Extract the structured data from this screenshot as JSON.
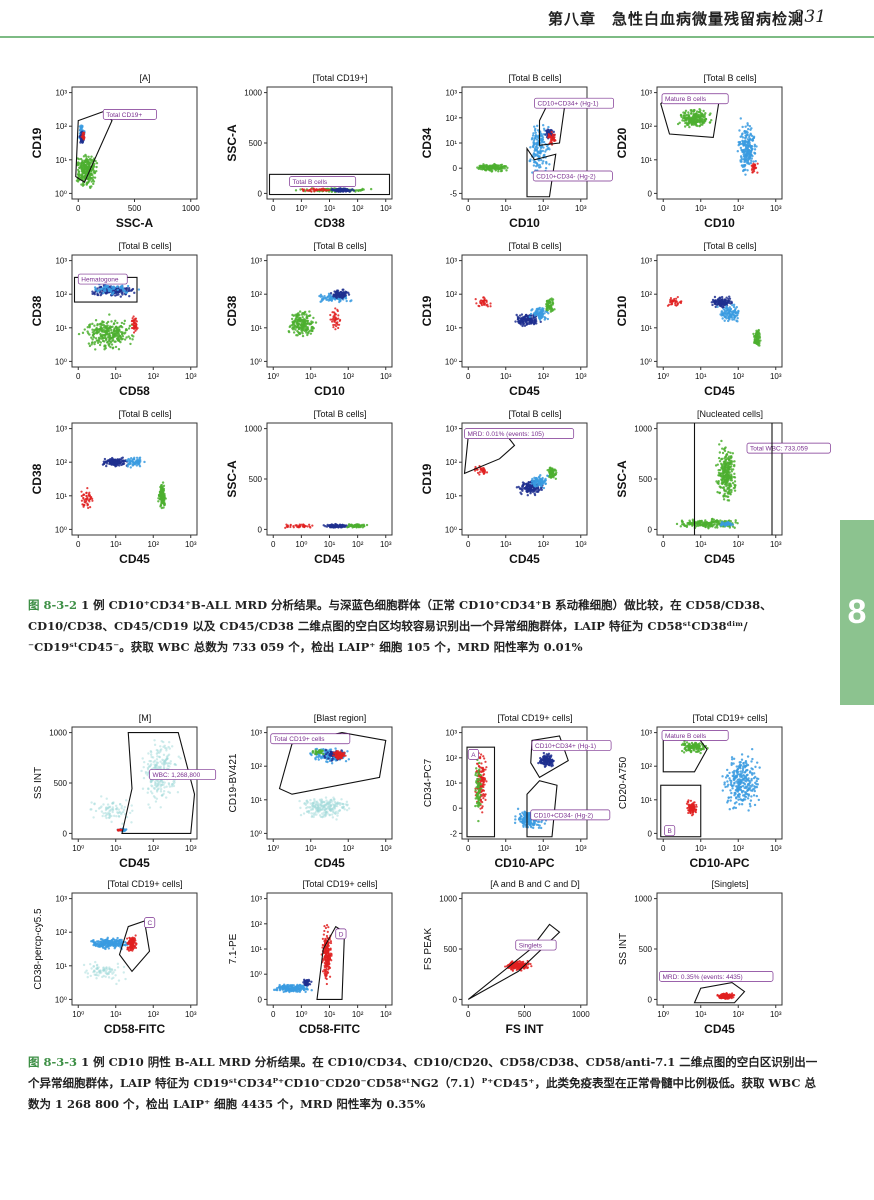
{
  "header": {
    "title": "第八章　急性白血病微量残留病检测",
    "page_number": "231"
  },
  "side_tab": {
    "label": "8"
  },
  "figure_1": {
    "plots": [
      {
        "title": "[A]",
        "xlabel": "SSC-A",
        "ylabel": "CD19",
        "xticks": [
          "0",
          "500",
          "1000"
        ],
        "yticks": [
          "10³",
          "10²",
          "10¹",
          "10⁰"
        ],
        "gate_label": "Total CD19+"
      },
      {
        "title": "[Total  CD19+]",
        "xlabel": "CD38",
        "ylabel": "SSC-A",
        "xticks": [
          "0",
          "10⁰",
          "10¹",
          "10²",
          "10³"
        ],
        "yticks": [
          "1000",
          "500",
          "0"
        ],
        "gate_label": "Total B  cells"
      },
      {
        "title": "[Total B cells]",
        "xlabel": "CD10",
        "ylabel": "CD34",
        "xticks": [
          "0",
          "10¹",
          "10²",
          "10³"
        ],
        "yticks": [
          "10³",
          "10²",
          "10¹",
          "0",
          "-5"
        ],
        "gate_label": "CD10+CD34+ (Hg-1)",
        "gate_label_2": "CD10+CD34- (Hg-2)"
      },
      {
        "title": "[Total B cells]",
        "xlabel": "CD10",
        "ylabel": "CD20",
        "xticks": [
          "0",
          "10¹",
          "10²",
          "10³"
        ],
        "yticks": [
          "10³",
          "10²",
          "10¹",
          "0"
        ],
        "gate_label": "Mature B cells"
      },
      {
        "title": "[Total B cells]",
        "xlabel": "CD58",
        "ylabel": "CD38",
        "xticks": [
          "0",
          "10¹",
          "10²",
          "10³"
        ],
        "yticks": [
          "10³",
          "10²",
          "10¹",
          "10⁰"
        ],
        "gate_label": "Hematogone"
      },
      {
        "title": "[Total B cells]",
        "xlabel": "CD10",
        "ylabel": "CD38",
        "xticks": [
          "10⁰",
          "10¹",
          "10²",
          "10³"
        ],
        "yticks": [
          "10³",
          "10²",
          "10¹",
          "10⁰"
        ],
        "gate_label": ""
      },
      {
        "title": "[Total B cells]",
        "xlabel": "CD45",
        "ylabel": "CD19",
        "xticks": [
          "0",
          "10¹",
          "10²",
          "10³"
        ],
        "yticks": [
          "10³",
          "10²",
          "10¹",
          "10⁰"
        ],
        "gate_label": ""
      },
      {
        "title": "[Total B cells]",
        "xlabel": "CD45",
        "ylabel": "CD10",
        "xticks": [
          "10⁰",
          "10¹",
          "10²",
          "10³"
        ],
        "yticks": [
          "10³",
          "10²",
          "10¹",
          "10⁰"
        ],
        "gate_label": ""
      },
      {
        "title": "[Total B cells]",
        "xlabel": "CD45",
        "ylabel": "CD38",
        "xticks": [
          "0",
          "10¹",
          "10²",
          "10³"
        ],
        "yticks": [
          "10³",
          "10²",
          "10¹",
          "10⁰"
        ],
        "gate_label": ""
      },
      {
        "title": "[Total B cells]",
        "xlabel": "CD45",
        "ylabel": "SSC-A",
        "xticks": [
          "0",
          "10⁰",
          "10¹",
          "10²",
          "10³"
        ],
        "yticks": [
          "1000",
          "500",
          "0"
        ],
        "gate_label": ""
      },
      {
        "title": "[Total B cells]",
        "xlabel": "CD45",
        "ylabel": "CD19",
        "xticks": [
          "0",
          "10¹",
          "10²",
          "10³"
        ],
        "yticks": [
          "10³",
          "10²",
          "10¹",
          "10⁰"
        ],
        "gate_label": "MRD: 0.01% (events: 105)"
      },
      {
        "title": "[Nucleated cells]",
        "xlabel": "CD45",
        "ylabel": "SSC-A",
        "xticks": [
          "0",
          "10¹",
          "10²",
          "10³"
        ],
        "yticks": [
          "1000",
          "500",
          "0"
        ],
        "gate_label": "Total WBC: 733,059"
      }
    ],
    "caption": {
      "number": "图 8-3-2",
      "text": "1 例 CD10⁺CD34⁺B-ALL MRD 分析结果。与深蓝色细胞群体（正常 CD10⁺CD34⁺B 系动稚细胞）做比较，在 CD58/CD38、CD10/CD38、CD45/CD19 以及 CD45/CD38 二维点图的空白区均较容易识别出一个异常细胞群体，LAIP 特征为 CD58ˢᵗCD38ᵈⁱᵐ/⁻CD19ˢᵗCD45⁻。获取 WBC 总数为 733 059 个，检出 LAIP⁺ 细胞 105 个，MRD 阳性率为 0.01%"
    }
  },
  "figure_2": {
    "plots": [
      {
        "title": "[M]",
        "xlabel": "CD45",
        "ylabel": "SS INT",
        "xticks": [
          "10⁰",
          "10¹",
          "10²",
          "10³"
        ],
        "yticks": [
          "1000",
          "500",
          "0"
        ],
        "gate_label": "WBC: 1,268,800"
      },
      {
        "title": "[Blast region]",
        "xlabel": "CD45",
        "ylabel": "CD19-BV421",
        "xticks": [
          "10⁰",
          "10¹",
          "10²",
          "10³"
        ],
        "yticks": [
          "10³",
          "10²",
          "10¹",
          "10⁰"
        ],
        "gate_label": "Total CD19+ cells"
      },
      {
        "title": "[Total CD19+ cells]",
        "xlabel": "CD10-APC",
        "ylabel": "CD34-PC7",
        "xticks": [
          "0",
          "10¹",
          "10²",
          "10³"
        ],
        "yticks": [
          "10³",
          "10²",
          "10¹",
          "0",
          "-2"
        ],
        "gate_label": "CD10+CD34+ (Hg-1)",
        "gate_label_2": "CD10+CD34- (Hg-2)",
        "gate_label_3": "A"
      },
      {
        "title": "[Total CD19+ cells]",
        "xlabel": "CD10-APC",
        "ylabel": "CD20-A750",
        "xticks": [
          "0",
          "10¹",
          "10²",
          "10³"
        ],
        "yticks": [
          "10³",
          "10²",
          "10¹",
          "0"
        ],
        "gate_label": "Mature B cells",
        "gate_label_3": "B"
      },
      {
        "title": "[Total CD19+ cells]",
        "xlabel": "CD58-FITC",
        "ylabel": "CD38-percp-cy5.5",
        "xticks": [
          "10⁰",
          "10¹",
          "10²",
          "10³"
        ],
        "yticks": [
          "10³",
          "10²",
          "10¹",
          "10⁰"
        ],
        "gate_label": "C"
      },
      {
        "title": "[Total CD19+ cells]",
        "xlabel": "CD58-FITC",
        "ylabel": "7.1-PE",
        "xticks": [
          "0",
          "10⁰",
          "10¹",
          "10²",
          "10³"
        ],
        "yticks": [
          "10³",
          "10²",
          "10¹",
          "10⁰",
          "0"
        ],
        "gate_label": "D"
      },
      {
        "title": "[A and B and C and D]",
        "xlabel": "FS INT",
        "ylabel": "FS PEAK",
        "xticks": [
          "0",
          "500",
          "1000"
        ],
        "yticks": [
          "1000",
          "500",
          "0"
        ],
        "gate_label": "Singlets"
      },
      {
        "title": "[Singlets]",
        "xlabel": "CD45",
        "ylabel": "SS INT",
        "xticks": [
          "10⁰",
          "10¹",
          "10²",
          "10³"
        ],
        "yticks": [
          "1000",
          "500",
          "0"
        ],
        "gate_label": "MRD: 0.35% (events: 4435)"
      }
    ],
    "caption": {
      "number": "图 8-3-3",
      "text": "1 例 CD10 阴性 B-ALL MRD 分析结果。在 CD10/CD34、CD10/CD20、CD58/CD38、CD58/anti-7.1 二维点图的空白区识别出一个异常细胞群体，LAIP 特征为 CD19ˢᵗCD34ᴾ⁺CD10⁻CD20⁻CD58ˢᵗNG2（7.1）ᴾ⁺CD45⁺，此类免疫表型在正常骨髓中比例极低。获取 WBC 总数为 1 268 800 个，检出 LAIP⁺ 细胞 4435 个，MRD 阳性率为 0.35%"
    }
  },
  "colors": {
    "accent": "#7dbb84",
    "tab": "#8cc38f",
    "caption_number": "#3d8f45",
    "gate_label": "#7a2f8f",
    "dark_blue": "#1f2f8f",
    "light_blue": "#3a9be0",
    "green": "#4caf2f",
    "red": "#e02020",
    "cyan": "#9fd9d9"
  }
}
